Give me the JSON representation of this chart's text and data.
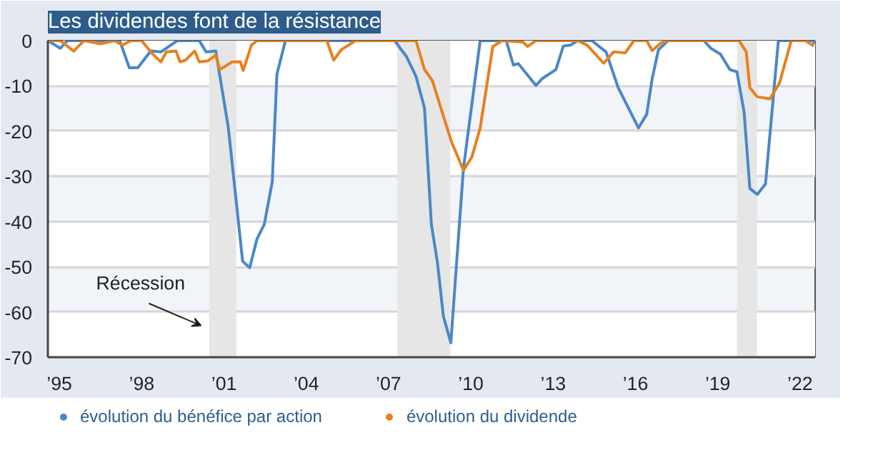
{
  "chart_data": {
    "type": "line",
    "title": "Les dividendes font de la résistance",
    "xlim": [
      1994.58,
      2022.55
    ],
    "ylim": [
      -70,
      0
    ],
    "xticks": [
      {
        "value": 1995,
        "label": "’95"
      },
      {
        "value": 1998,
        "label": "’98"
      },
      {
        "value": 2001,
        "label": "’01"
      },
      {
        "value": 2004,
        "label": "’04"
      },
      {
        "value": 2007,
        "label": "’07"
      },
      {
        "value": 2010,
        "label": "’10"
      },
      {
        "value": 2013,
        "label": "’13"
      },
      {
        "value": 2016,
        "label": "’16"
      },
      {
        "value": 2019,
        "label": "’19"
      },
      {
        "value": 2022,
        "label": "’22"
      }
    ],
    "yticks": [
      0,
      -10,
      -20,
      -30,
      -40,
      -50,
      -60,
      -70
    ],
    "grid": "y",
    "legend": "bottom",
    "line_style": "solid",
    "bands": [
      {
        "axis": "x",
        "from": 2000.46,
        "to": 2001.45,
        "color": "#e6e6e6"
      },
      {
        "axis": "x",
        "from": 2007.32,
        "to": 2009.25,
        "color": "#e6e6e6"
      },
      {
        "axis": "x",
        "from": 2019.7,
        "to": 2020.43,
        "color": "#e6e6e6"
      }
    ],
    "annotations": [
      "Récession"
    ],
    "series": [
      {
        "name": "évolution du bénéfice par action",
        "color": "#4a87c8",
        "x": [
          1994.58,
          1995.03,
          1995.29,
          1997.2,
          1997.55,
          1997.86,
          1998.33,
          1998.7,
          1999.3,
          2000.1,
          2000.35,
          2000.7,
          2001.16,
          2001.68,
          2001.94,
          2002.2,
          2002.47,
          2002.76,
          2002.93,
          2003.24,
          2007.22,
          2007.65,
          2008.0,
          2008.31,
          2008.56,
          2008.78,
          2009.0,
          2009.27,
          2009.73,
          2010.34,
          2011.29,
          2011.55,
          2011.73,
          2012.37,
          2012.6,
          2013.1,
          2013.37,
          2013.63,
          2013.89,
          2014.41,
          2014.93,
          2015.37,
          2016.11,
          2016.41,
          2016.61,
          2016.84,
          2017.19,
          2018.49,
          2018.75,
          2019.1,
          2019.44,
          2019.7,
          2019.96,
          2020.17,
          2020.44,
          2020.74,
          2021.21,
          2022.47,
          2022.52
        ],
        "values": [
          0,
          -1.7,
          0,
          0,
          -6,
          -6,
          -2.3,
          -2.5,
          0,
          0,
          -2.5,
          -2.3,
          -19.3,
          -48.8,
          -50.2,
          -43.9,
          -40.6,
          -31.2,
          -7.4,
          0,
          0,
          -3.5,
          -7.9,
          -14.9,
          -40.6,
          -49,
          -61,
          -66.8,
          -28.2,
          0,
          0,
          -5.4,
          -5.1,
          -9.9,
          -8.4,
          -6.4,
          -1.2,
          -1,
          0,
          0,
          -2.5,
          -10.4,
          -19.3,
          -16.3,
          -8.4,
          -2,
          0,
          0,
          -1.7,
          -3,
          -6.4,
          -6.9,
          -15.8,
          -32.7,
          -34,
          -31.7,
          0,
          0,
          -0.7
        ]
      },
      {
        "name": "évolution du dividende",
        "color": "#e8801e",
        "x": [
          1994.58,
          1995.03,
          1995.52,
          1995.9,
          1996.5,
          1997.0,
          1997.3,
          1997.6,
          1998.0,
          1998.33,
          1998.7,
          1998.9,
          1999.25,
          1999.4,
          1999.6,
          1999.93,
          2000.1,
          2000.4,
          2000.7,
          2000.85,
          2001.3,
          2001.6,
          2001.7,
          2002.0,
          2002.2,
          2004.75,
          2005.0,
          2005.28,
          2005.8,
          2008.0,
          2008.31,
          2008.6,
          2009.03,
          2009.29,
          2009.73,
          2010.04,
          2010.34,
          2010.8,
          2011.15,
          2011.9,
          2012.07,
          2012.37,
          2013.6,
          2013.89,
          2014.24,
          2014.84,
          2015.2,
          2015.63,
          2015.94,
          2016.41,
          2016.61,
          2016.93,
          2017.19,
          2019.78,
          2020.04,
          2020.17,
          2020.44,
          2020.9,
          2021.25,
          2021.68,
          2022.2,
          2022.5
        ],
        "values": [
          0,
          0,
          -2.3,
          0,
          -0.7,
          0,
          -1,
          0,
          0,
          -2.5,
          -4.7,
          -2.5,
          -2.3,
          -4.7,
          -4.3,
          -2.3,
          -4.7,
          -4.5,
          -3.2,
          -6.4,
          -4.7,
          -4.7,
          -6.6,
          -1,
          0,
          0,
          -4.3,
          -2,
          0,
          0,
          -6.4,
          -8.9,
          -17.3,
          -22.3,
          -28.7,
          -25.7,
          -19.3,
          -1.3,
          0,
          -0.3,
          -1.3,
          0,
          0,
          0,
          -1,
          -5,
          -2.5,
          -2.7,
          0,
          0,
          -2.2,
          -0.5,
          0,
          0,
          -2.5,
          -10.4,
          -12.4,
          -12.9,
          -9.4,
          0,
          0,
          -1.2
        ]
      }
    ]
  }
}
